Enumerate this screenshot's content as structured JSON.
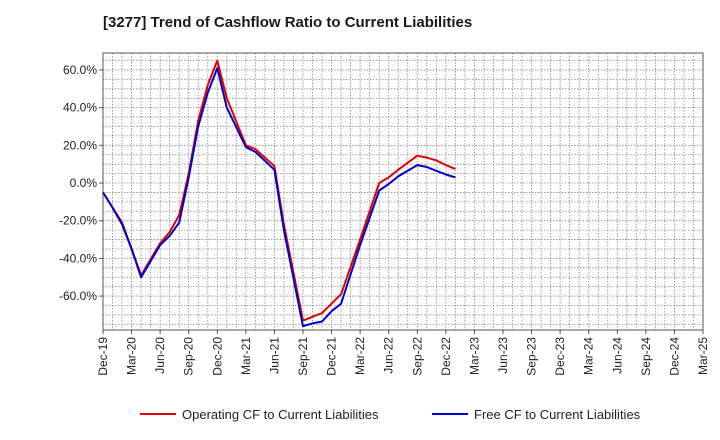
{
  "title": "[3277]  Trend of Cashflow Ratio to Current Liabilities",
  "chart_data": {
    "type": "line",
    "title": "[3277]  Trend of Cashflow Ratio to Current Liabilities",
    "xlabel": "",
    "ylabel": "",
    "categories": [
      "Dec-19",
      "Mar-20",
      "Jun-20",
      "Sep-20",
      "Dec-20",
      "Mar-21",
      "Jun-21",
      "Sep-21",
      "Dec-21",
      "Mar-22",
      "Jun-22",
      "Sep-22",
      "Dec-22",
      "Mar-23",
      "Jun-23",
      "Sep-23",
      "Dec-23",
      "Mar-24",
      "Jun-24",
      "Sep-24",
      "Dec-24",
      "Mar-25"
    ],
    "x_minor_per_major": 3,
    "y_ticks": [
      60,
      40,
      20,
      0,
      -20,
      -40,
      -60
    ],
    "y_tick_labels": [
      "60.0%",
      "40.0%",
      "20.0%",
      "0.0%",
      "-20.0%",
      "-40.0%",
      "-60.0%"
    ],
    "ylim": [
      -78,
      69
    ],
    "y_unit": "%",
    "grid": true,
    "legend_position": "bottom",
    "series": [
      {
        "name": "Operating CF to Current Liabilities",
        "color": "#e00000",
        "points": [
          [
            0,
            -5
          ],
          [
            0.333,
            -13
          ],
          [
            0.667,
            -21
          ],
          [
            1,
            -35
          ],
          [
            1.333,
            -49
          ],
          [
            2,
            -32
          ],
          [
            2.333,
            -26
          ],
          [
            2.667,
            -17
          ],
          [
            3,
            5
          ],
          [
            3.333,
            33
          ],
          [
            3.667,
            52
          ],
          [
            4,
            65
          ],
          [
            4.333,
            45
          ],
          [
            5,
            20
          ],
          [
            5.333,
            18
          ],
          [
            6,
            9
          ],
          [
            6.333,
            -22
          ],
          [
            7,
            -73
          ],
          [
            7.333,
            -71
          ],
          [
            7.667,
            -69
          ],
          [
            8,
            -64
          ],
          [
            8.333,
            -59
          ],
          [
            9,
            -30
          ],
          [
            9.667,
            0
          ],
          [
            10,
            3
          ],
          [
            10.333,
            7
          ],
          [
            11,
            14.5
          ],
          [
            11.333,
            13.5
          ],
          [
            11.667,
            12
          ],
          [
            12,
            9.5
          ],
          [
            12.333,
            7.5
          ]
        ]
      },
      {
        "name": "Free CF to Current Liabilities",
        "color": "#0000cc",
        "points": [
          [
            0,
            -5
          ],
          [
            0.333,
            -13
          ],
          [
            0.667,
            -22
          ],
          [
            1,
            -35
          ],
          [
            1.333,
            -50
          ],
          [
            2,
            -33
          ],
          [
            2.333,
            -28
          ],
          [
            2.667,
            -21
          ],
          [
            3,
            3
          ],
          [
            3.333,
            30
          ],
          [
            3.667,
            48
          ],
          [
            4,
            61
          ],
          [
            4.333,
            40
          ],
          [
            5,
            19
          ],
          [
            5.333,
            16.5
          ],
          [
            6,
            7
          ],
          [
            6.333,
            -25
          ],
          [
            7,
            -76
          ],
          [
            7.333,
            -74.5
          ],
          [
            7.667,
            -73.5
          ],
          [
            8,
            -68
          ],
          [
            8.333,
            -64
          ],
          [
            9,
            -33
          ],
          [
            9.667,
            -4
          ],
          [
            10,
            -0.5
          ],
          [
            10.333,
            3.5
          ],
          [
            11,
            9.5
          ],
          [
            11.333,
            8.5
          ],
          [
            11.667,
            6.5
          ],
          [
            12,
            4.5
          ],
          [
            12.333,
            3
          ]
        ]
      }
    ]
  }
}
